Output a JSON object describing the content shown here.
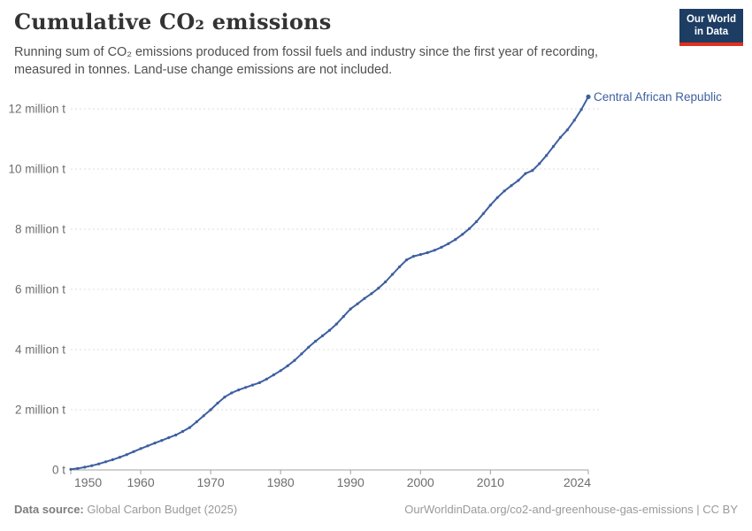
{
  "header": {
    "title": "Cumulative CO₂ emissions",
    "subtitle": "Running sum of CO₂ emissions produced from fossil fuels and industry since the first year of recording, measured in tonnes. Land-use change emissions are not included.",
    "logo": {
      "line1": "Our World",
      "line2": "in Data",
      "bg_color": "#1d3d63",
      "accent_color": "#e0301e"
    }
  },
  "chart_data": {
    "type": "line",
    "title": "Cumulative CO₂ emissions",
    "entity_label": "Central African Republic",
    "line_color": "#3d5fa0",
    "grid": "horizontal dashed",
    "legend_position": "end-of-line label",
    "xlim": [
      1950,
      2024
    ],
    "ylim": [
      0,
      12.4
    ],
    "x_ticks": [
      1950,
      1960,
      1970,
      1980,
      1990,
      2000,
      2010,
      2024
    ],
    "y_ticks": [
      {
        "value": 0,
        "label": "0 t"
      },
      {
        "value": 2,
        "label": "2 million t"
      },
      {
        "value": 4,
        "label": "4 million t"
      },
      {
        "value": 6,
        "label": "6 million t"
      },
      {
        "value": 8,
        "label": "8 million t"
      },
      {
        "value": 10,
        "label": "10 million t"
      },
      {
        "value": 12,
        "label": "12 million t"
      }
    ],
    "unit": "million tonnes",
    "series": [
      {
        "name": "Central African Republic",
        "x": [
          1950,
          1951,
          1952,
          1953,
          1954,
          1955,
          1956,
          1957,
          1958,
          1959,
          1960,
          1961,
          1962,
          1963,
          1964,
          1965,
          1966,
          1967,
          1968,
          1969,
          1970,
          1971,
          1972,
          1973,
          1974,
          1975,
          1976,
          1977,
          1978,
          1979,
          1980,
          1981,
          1982,
          1983,
          1984,
          1985,
          1986,
          1987,
          1988,
          1989,
          1990,
          1991,
          1992,
          1993,
          1994,
          1995,
          1996,
          1997,
          1998,
          1999,
          2000,
          2001,
          2002,
          2003,
          2004,
          2005,
          2006,
          2007,
          2008,
          2009,
          2010,
          2011,
          2012,
          2013,
          2014,
          2015,
          2016,
          2017,
          2018,
          2019,
          2020,
          2021,
          2022,
          2023,
          2024
        ],
        "values": [
          0.02,
          0.05,
          0.09,
          0.14,
          0.2,
          0.27,
          0.34,
          0.42,
          0.51,
          0.61,
          0.71,
          0.8,
          0.89,
          0.98,
          1.07,
          1.16,
          1.28,
          1.41,
          1.6,
          1.8,
          2.0,
          2.22,
          2.42,
          2.56,
          2.66,
          2.74,
          2.82,
          2.9,
          3.02,
          3.16,
          3.3,
          3.46,
          3.64,
          3.86,
          4.08,
          4.28,
          4.46,
          4.64,
          4.85,
          5.1,
          5.35,
          5.52,
          5.7,
          5.86,
          6.04,
          6.25,
          6.5,
          6.75,
          6.98,
          7.1,
          7.16,
          7.22,
          7.3,
          7.4,
          7.52,
          7.66,
          7.83,
          8.02,
          8.25,
          8.52,
          8.8,
          9.05,
          9.27,
          9.45,
          9.62,
          9.85,
          9.95,
          10.18,
          10.45,
          10.75,
          11.05,
          11.3,
          11.62,
          11.98,
          12.4
        ]
      }
    ]
  },
  "footer": {
    "source_label": "Data source:",
    "source_value": "Global Carbon Budget (2025)",
    "link_text": "OurWorldinData.org/co2-and-greenhouse-gas-emissions | CC BY"
  }
}
